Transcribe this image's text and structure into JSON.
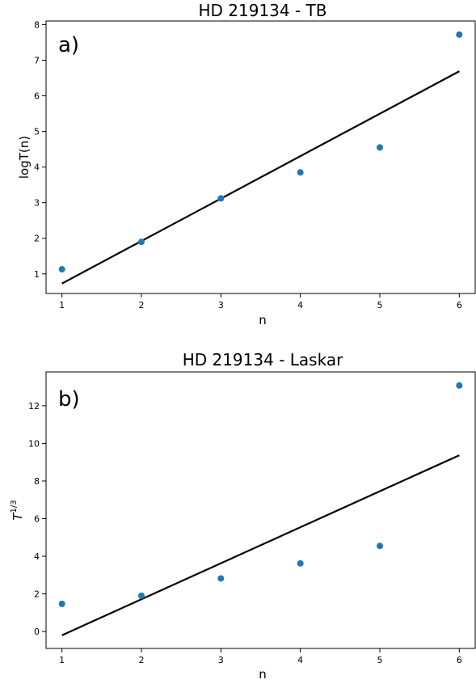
{
  "chart_data": [
    {
      "type": "scatter",
      "title": "HD 219134 - TB",
      "panel_label": "a)",
      "xlabel": "n",
      "ylabel": "logT(n)",
      "xlim": [
        0.8,
        6.2
      ],
      "ylim": [
        0.45,
        8.1
      ],
      "xticks": [
        1,
        2,
        3,
        4,
        5,
        6
      ],
      "yticks": [
        1,
        2,
        3,
        4,
        5,
        6,
        7,
        8
      ],
      "x": [
        1,
        2,
        3,
        4,
        5,
        6
      ],
      "y": [
        1.13,
        1.9,
        3.12,
        3.85,
        4.55,
        7.72
      ],
      "fit_line": {
        "x": [
          1,
          6
        ],
        "y": [
          0.73,
          6.69
        ]
      },
      "point_color": "#1f77b4",
      "line_color": "#000000",
      "grid": false
    },
    {
      "type": "scatter",
      "title": "HD 219134 - Laskar",
      "panel_label": "b)",
      "xlabel": "n",
      "ylabel": "T",
      "ylabel_sup": "1/3",
      "xlim": [
        0.8,
        6.2
      ],
      "ylim": [
        -0.9,
        13.8
      ],
      "xticks": [
        1,
        2,
        3,
        4,
        5,
        6
      ],
      "yticks": [
        0,
        2,
        4,
        6,
        8,
        10,
        12
      ],
      "x": [
        1,
        2,
        3,
        4,
        5,
        6
      ],
      "y": [
        1.47,
        1.9,
        2.82,
        3.62,
        4.55,
        13.08
      ],
      "fit_line": {
        "x": [
          1,
          6
        ],
        "y": [
          -0.2,
          9.37
        ]
      },
      "point_color": "#1f77b4",
      "line_color": "#000000",
      "grid": false
    }
  ]
}
